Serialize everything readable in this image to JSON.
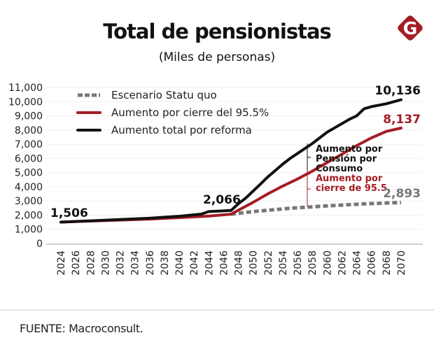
{
  "header": {
    "title": "Total de pensionistas",
    "subtitle": "(Miles de personas)",
    "logo_letter": "G",
    "logo_color": "#a51c24"
  },
  "footer": {
    "source": "FUENTE: Macroconsult."
  },
  "chart_data": {
    "type": "line",
    "title": "Total de pensionistas",
    "subtitle": "(Miles de personas)",
    "xlabel": "",
    "ylabel": "",
    "xlim": [
      2024,
      2070
    ],
    "ylim": [
      0,
      11000
    ],
    "grid": true,
    "legend_position": "top-left",
    "y_ticks": [
      0,
      1000,
      2000,
      3000,
      4000,
      5000,
      6000,
      7000,
      8000,
      9000,
      10000,
      11000
    ],
    "y_tick_labels": [
      "0",
      "1,000",
      "2,000",
      "3,000",
      "4,000",
      "5,000",
      "6,000",
      "7,000",
      "8,000",
      "9,000",
      "10,000",
      "11,000"
    ],
    "x_ticks": [
      2024,
      2026,
      2028,
      2030,
      2032,
      2034,
      2036,
      2038,
      2040,
      2042,
      2044,
      2046,
      2048,
      2050,
      2052,
      2054,
      2056,
      2058,
      2060,
      2062,
      2064,
      2066,
      2068,
      2070
    ],
    "series": [
      {
        "name": "Escenario Statu quo",
        "color": "#777777",
        "style": "dashed",
        "x": [
          2047,
          2050,
          2055,
          2060,
          2065,
          2070
        ],
        "values": [
          2066,
          2250,
          2480,
          2650,
          2790,
          2893
        ]
      },
      {
        "name": "Aumento por cierre del 95.5%",
        "color": "#a51c24",
        "style": "solid",
        "x": [
          2024,
          2028,
          2032,
          2036,
          2040,
          2044,
          2047,
          2048,
          2050,
          2052,
          2054,
          2056,
          2058,
          2060,
          2062,
          2064,
          2066,
          2068,
          2070
        ],
        "values": [
          1506,
          1580,
          1650,
          1720,
          1820,
          1930,
          2066,
          2350,
          2900,
          3500,
          4050,
          4550,
          5100,
          5700,
          6300,
          6900,
          7450,
          7900,
          8137
        ]
      },
      {
        "name": "Aumento total por reforma",
        "color": "#111111",
        "style": "solid",
        "x": [
          2024,
          2028,
          2032,
          2036,
          2040,
          2043,
          2044,
          2046,
          2047,
          2048,
          2049,
          2050,
          2051,
          2052,
          2053,
          2054,
          2055,
          2056,
          2057,
          2058,
          2059,
          2060,
          2061,
          2062,
          2063,
          2064,
          2065,
          2066,
          2068,
          2070
        ],
        "values": [
          1506,
          1600,
          1690,
          1780,
          1920,
          2070,
          2250,
          2300,
          2330,
          2800,
          3200,
          3700,
          4200,
          4700,
          5150,
          5600,
          6000,
          6350,
          6700,
          7050,
          7450,
          7850,
          8150,
          8450,
          8750,
          9000,
          9500,
          9650,
          9850,
          10136
        ]
      }
    ],
    "data_labels": [
      {
        "text": "1,506",
        "x": 2024,
        "value": 1506,
        "color": "#111111"
      },
      {
        "text": "2,066",
        "x": 2047,
        "value": 2066,
        "color": "#111111"
      },
      {
        "text": "10,136",
        "x": 2070,
        "value": 10136,
        "color": "#111111"
      },
      {
        "text": "8,137",
        "x": 2070,
        "value": 8137,
        "color": "#a51c24"
      },
      {
        "text": "2,893",
        "x": 2070,
        "value": 2893,
        "color": "#777777"
      }
    ],
    "annotations": [
      {
        "lines": [
          "Aumento por",
          "Pensión por",
          "Consumo"
        ],
        "color": "#111111",
        "x": 2058,
        "from_series": "Aumento por cierre del 95.5%",
        "to_series": "Aumento total por reforma"
      },
      {
        "lines": [
          "Aumento por",
          "cierre de 95.5"
        ],
        "color": "#a51c24",
        "x": 2058,
        "from_series": "Escenario Statu quo",
        "to_series": "Aumento por cierre del 95.5%"
      }
    ]
  }
}
